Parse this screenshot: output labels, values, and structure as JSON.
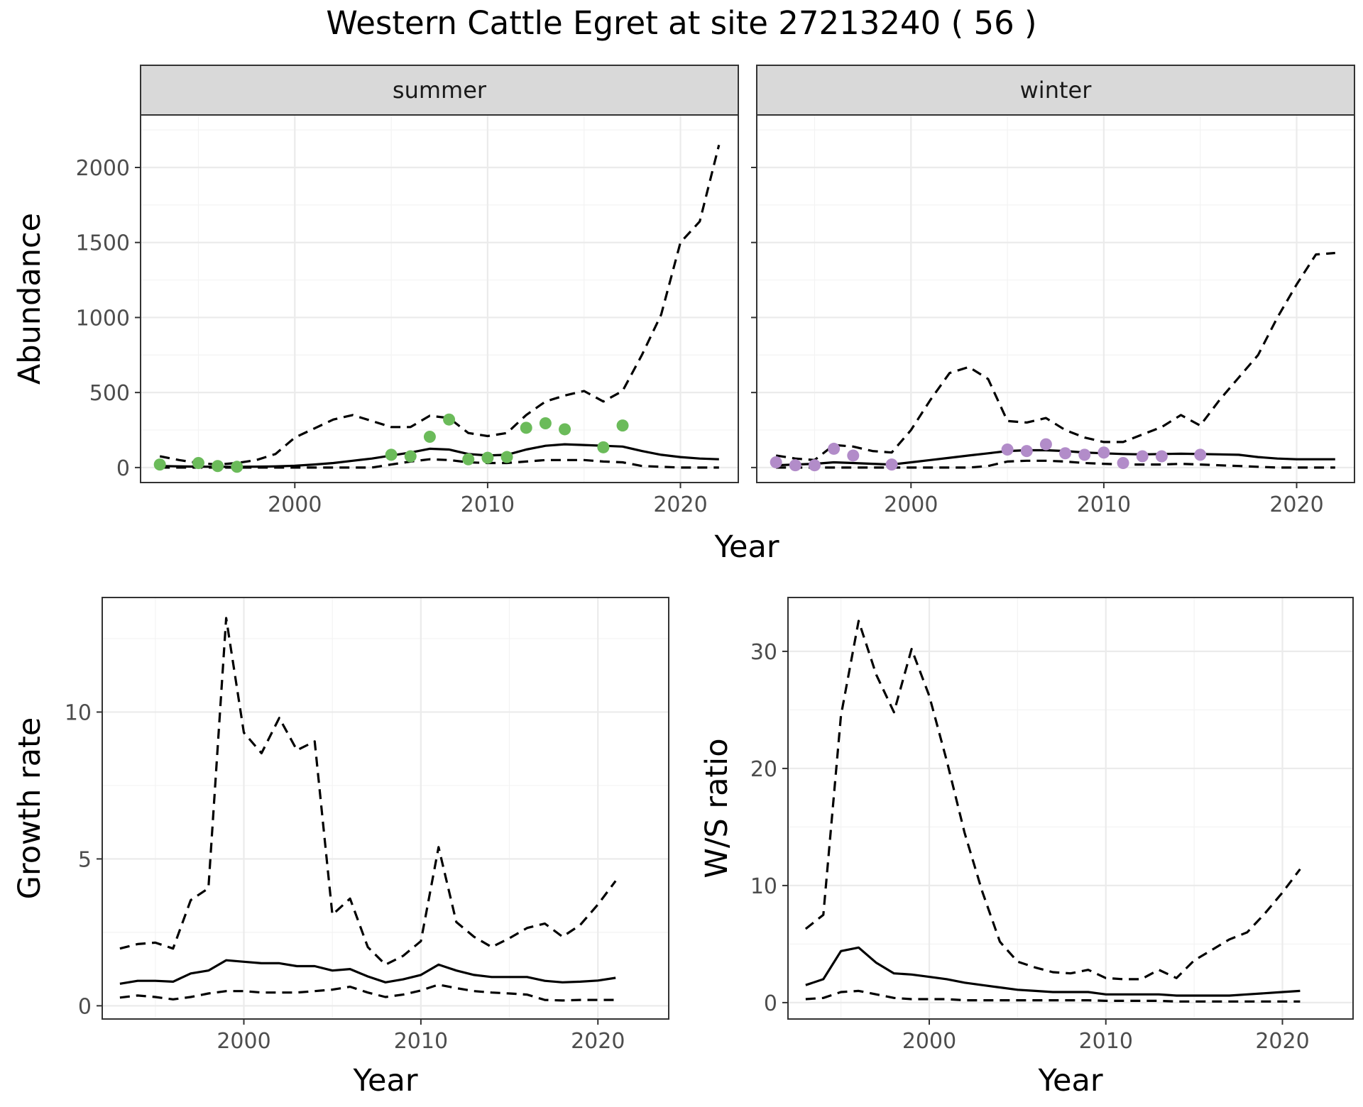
{
  "figure_title": "Western Cattle Egret at site 27213240 ( 56 )",
  "chart_data": [
    {
      "type": "line",
      "panel": "summer",
      "strip_label": "summer",
      "xlabel": "Year",
      "ylabel": "Abundance",
      "xlim": [
        1992,
        2023
      ],
      "ylim": [
        -100,
        2350
      ],
      "x_ticks": [
        2000,
        2010,
        2020
      ],
      "y_ticks": [
        0,
        500,
        1000,
        1500,
        2000
      ],
      "grid": true,
      "x": [
        1993,
        1994,
        1995,
        1996,
        1997,
        1998,
        1999,
        2000,
        2001,
        2002,
        2003,
        2004,
        2005,
        2006,
        2007,
        2008,
        2009,
        2010,
        2011,
        2012,
        2013,
        2014,
        2015,
        2016,
        2017,
        2018,
        2019,
        2020,
        2021,
        2022
      ],
      "series": [
        {
          "style": "solid",
          "values": [
            10,
            8,
            6,
            5,
            5,
            6,
            8,
            12,
            20,
            30,
            45,
            60,
            80,
            100,
            125,
            120,
            90,
            80,
            85,
            120,
            145,
            155,
            150,
            145,
            140,
            110,
            85,
            70,
            60,
            55
          ]
        },
        {
          "style": "dashed",
          "values": [
            75,
            50,
            30,
            20,
            30,
            50,
            90,
            200,
            260,
            320,
            350,
            310,
            270,
            270,
            345,
            330,
            230,
            210,
            230,
            350,
            440,
            480,
            510,
            440,
            510,
            750,
            1020,
            1500,
            1640,
            2150
          ]
        },
        {
          "style": "dashed",
          "values": [
            0,
            0,
            0,
            0,
            0,
            0,
            0,
            0,
            0,
            0,
            0,
            0,
            20,
            40,
            55,
            50,
            35,
            30,
            30,
            40,
            50,
            50,
            50,
            40,
            35,
            10,
            5,
            0,
            0,
            0
          ]
        }
      ],
      "points": {
        "color": "#6bbb5a",
        "x": [
          1993,
          1995,
          1996,
          1997,
          2005,
          2006,
          2007,
          2008,
          2009,
          2010,
          2011,
          2012,
          2013,
          2014,
          2016,
          2017
        ],
        "y": [
          20,
          30,
          10,
          5,
          85,
          75,
          205,
          320,
          55,
          65,
          70,
          265,
          295,
          255,
          135,
          280
        ]
      }
    },
    {
      "type": "line",
      "panel": "winter",
      "strip_label": "winter",
      "xlabel": "Year",
      "ylabel": "Abundance",
      "xlim": [
        1992,
        2023
      ],
      "ylim": [
        -100,
        2350
      ],
      "x_ticks": [
        2000,
        2010,
        2020
      ],
      "grid": true,
      "x": [
        1993,
        1994,
        1995,
        1996,
        1997,
        1998,
        1999,
        2000,
        2001,
        2002,
        2003,
        2004,
        2005,
        2006,
        2007,
        2008,
        2009,
        2010,
        2011,
        2012,
        2013,
        2014,
        2015,
        2016,
        2017,
        2018,
        2019,
        2020,
        2021,
        2022
      ],
      "series": [
        {
          "style": "solid",
          "values": [
            15,
            20,
            25,
            35,
            30,
            25,
            20,
            35,
            50,
            65,
            80,
            95,
            110,
            115,
            115,
            110,
            100,
            95,
            90,
            88,
            90,
            92,
            90,
            88,
            85,
            70,
            60,
            55,
            55,
            55
          ]
        },
        {
          "style": "dashed",
          "values": [
            80,
            60,
            50,
            150,
            140,
            110,
            100,
            250,
            450,
            630,
            670,
            590,
            310,
            300,
            330,
            250,
            200,
            170,
            170,
            220,
            270,
            350,
            280,
            450,
            600,
            750,
            1000,
            1220,
            1420,
            1430
          ]
        },
        {
          "style": "dashed",
          "values": [
            0,
            0,
            0,
            0,
            0,
            0,
            0,
            0,
            0,
            0,
            0,
            10,
            40,
            45,
            45,
            40,
            30,
            25,
            20,
            20,
            20,
            25,
            20,
            15,
            10,
            5,
            0,
            0,
            0,
            0
          ]
        }
      ],
      "points": {
        "color": "#b28cc9",
        "x": [
          1993,
          1994,
          1995,
          1996,
          1997,
          1999,
          2005,
          2006,
          2007,
          2008,
          2009,
          2010,
          2011,
          2012,
          2013,
          2015
        ],
        "y": [
          35,
          15,
          15,
          125,
          80,
          20,
          120,
          110,
          155,
          95,
          85,
          100,
          30,
          75,
          75,
          85
        ]
      }
    },
    {
      "type": "line",
      "panel": "growth",
      "xlabel": "Year",
      "ylabel": "Growth rate",
      "xlim": [
        1992,
        2024
      ],
      "ylim": [
        -0.45,
        13.9
      ],
      "x_ticks": [
        2000,
        2010,
        2020
      ],
      "y_ticks": [
        0,
        5,
        10
      ],
      "grid": true,
      "x": [
        1993,
        1994,
        1995,
        1996,
        1997,
        1998,
        1999,
        2000,
        2001,
        2002,
        2003,
        2004,
        2005,
        2006,
        2007,
        2008,
        2009,
        2010,
        2011,
        2012,
        2013,
        2014,
        2015,
        2016,
        2017,
        2018,
        2019,
        2020,
        2021
      ],
      "series": [
        {
          "style": "solid",
          "values": [
            0.75,
            0.85,
            0.85,
            0.82,
            1.1,
            1.2,
            1.55,
            1.5,
            1.45,
            1.45,
            1.35,
            1.35,
            1.2,
            1.25,
            1.0,
            0.8,
            0.9,
            1.05,
            1.4,
            1.2,
            1.05,
            0.98,
            0.98,
            0.98,
            0.85,
            0.8,
            0.82,
            0.86,
            0.95
          ]
        },
        {
          "style": "dashed",
          "values": [
            1.95,
            2.1,
            2.15,
            1.95,
            3.6,
            4.0,
            13.2,
            9.3,
            8.6,
            9.8,
            8.7,
            9.0,
            3.1,
            3.65,
            2.0,
            1.4,
            1.7,
            2.2,
            5.4,
            2.85,
            2.35,
            2.0,
            2.3,
            2.65,
            2.8,
            2.35,
            2.75,
            3.45,
            4.25
          ]
        },
        {
          "style": "dashed",
          "values": [
            0.28,
            0.35,
            0.3,
            0.22,
            0.3,
            0.42,
            0.5,
            0.5,
            0.45,
            0.45,
            0.45,
            0.5,
            0.55,
            0.65,
            0.45,
            0.3,
            0.38,
            0.52,
            0.72,
            0.6,
            0.5,
            0.45,
            0.42,
            0.38,
            0.2,
            0.18,
            0.2,
            0.2,
            0.2
          ]
        }
      ]
    },
    {
      "type": "line",
      "panel": "ratio",
      "xlabel": "Year",
      "ylabel": "W/S ratio",
      "xlim": [
        1992,
        2024
      ],
      "ylim": [
        -1.4,
        34.6
      ],
      "x_ticks": [
        2000,
        2010,
        2020
      ],
      "y_ticks": [
        0,
        10,
        20,
        30
      ],
      "grid": true,
      "x": [
        1993,
        1994,
        1995,
        1996,
        1997,
        1998,
        1999,
        2000,
        2001,
        2002,
        2003,
        2004,
        2005,
        2006,
        2007,
        2008,
        2009,
        2010,
        2011,
        2012,
        2013,
        2014,
        2015,
        2016,
        2017,
        2018,
        2019,
        2020,
        2021
      ],
      "series": [
        {
          "style": "solid",
          "values": [
            1.5,
            2.0,
            4.4,
            4.7,
            3.4,
            2.5,
            2.4,
            2.2,
            2.0,
            1.7,
            1.5,
            1.3,
            1.1,
            1.0,
            0.9,
            0.9,
            0.9,
            0.7,
            0.7,
            0.7,
            0.7,
            0.6,
            0.6,
            0.6,
            0.6,
            0.7,
            0.8,
            0.9,
            1.0
          ]
        },
        {
          "style": "dashed",
          "values": [
            6.3,
            7.5,
            24.5,
            32.6,
            28.0,
            24.8,
            30.2,
            26.2,
            20.6,
            14.5,
            9.5,
            5.2,
            3.5,
            3.0,
            2.6,
            2.5,
            2.8,
            2.1,
            2.0,
            2.0,
            2.8,
            2.1,
            3.6,
            4.5,
            5.4,
            6.0,
            7.6,
            9.4,
            11.4
          ]
        },
        {
          "style": "dashed",
          "values": [
            0.3,
            0.4,
            0.9,
            1.0,
            0.7,
            0.4,
            0.3,
            0.3,
            0.3,
            0.2,
            0.2,
            0.2,
            0.2,
            0.2,
            0.2,
            0.2,
            0.2,
            0.15,
            0.15,
            0.15,
            0.15,
            0.1,
            0.1,
            0.1,
            0.1,
            0.1,
            0.1,
            0.1,
            0.1
          ]
        }
      ]
    }
  ]
}
